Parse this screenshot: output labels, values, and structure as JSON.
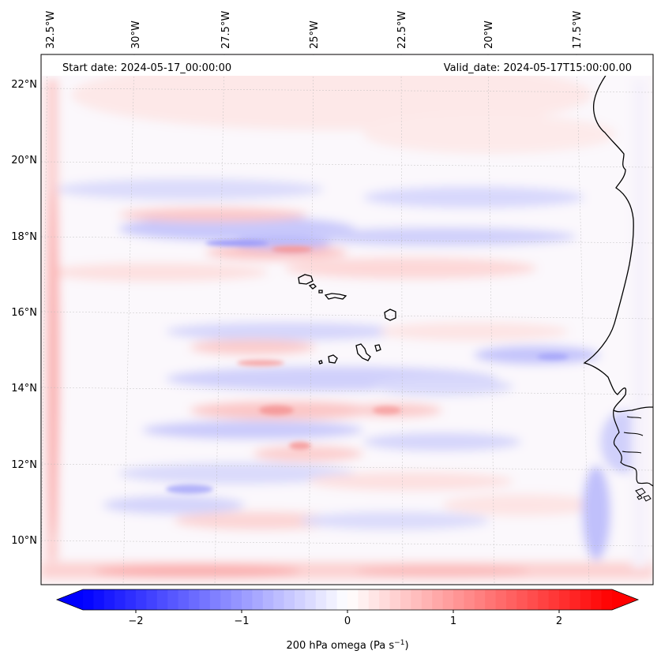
{
  "header": {
    "start_label": "Start date: 2024-05-17_00:00:00",
    "valid_label": "Valid_date: 2024-05-17T15:00:00.00"
  },
  "map": {
    "top_lon_labels": [
      "32.5°W",
      "30°W",
      "27.5°W",
      "25°W",
      "22.5°W",
      "20°W",
      "17.5°W"
    ],
    "left_lat_labels": [
      "22°N",
      "20°N",
      "18°N",
      "16°N",
      "14°N",
      "12°N",
      "10°N"
    ],
    "field": "200 hPa omega",
    "features": [
      "West African coastline",
      "Cape Verde islands"
    ]
  },
  "colorbar": {
    "label": "200 hPa omega (Pa s",
    "label_exp": "−1",
    "label_close": ")",
    "ticks": [
      "−2",
      "−1",
      "0",
      "1",
      "2"
    ],
    "tick_values": [
      -2,
      -1,
      0,
      1,
      2
    ],
    "min": -2.5,
    "max": 2.5,
    "extend": "both",
    "colormap": "bwr",
    "colors": {
      "negative": "#0000ff",
      "zero": "#ffffff",
      "positive": "#ff0000"
    }
  }
}
